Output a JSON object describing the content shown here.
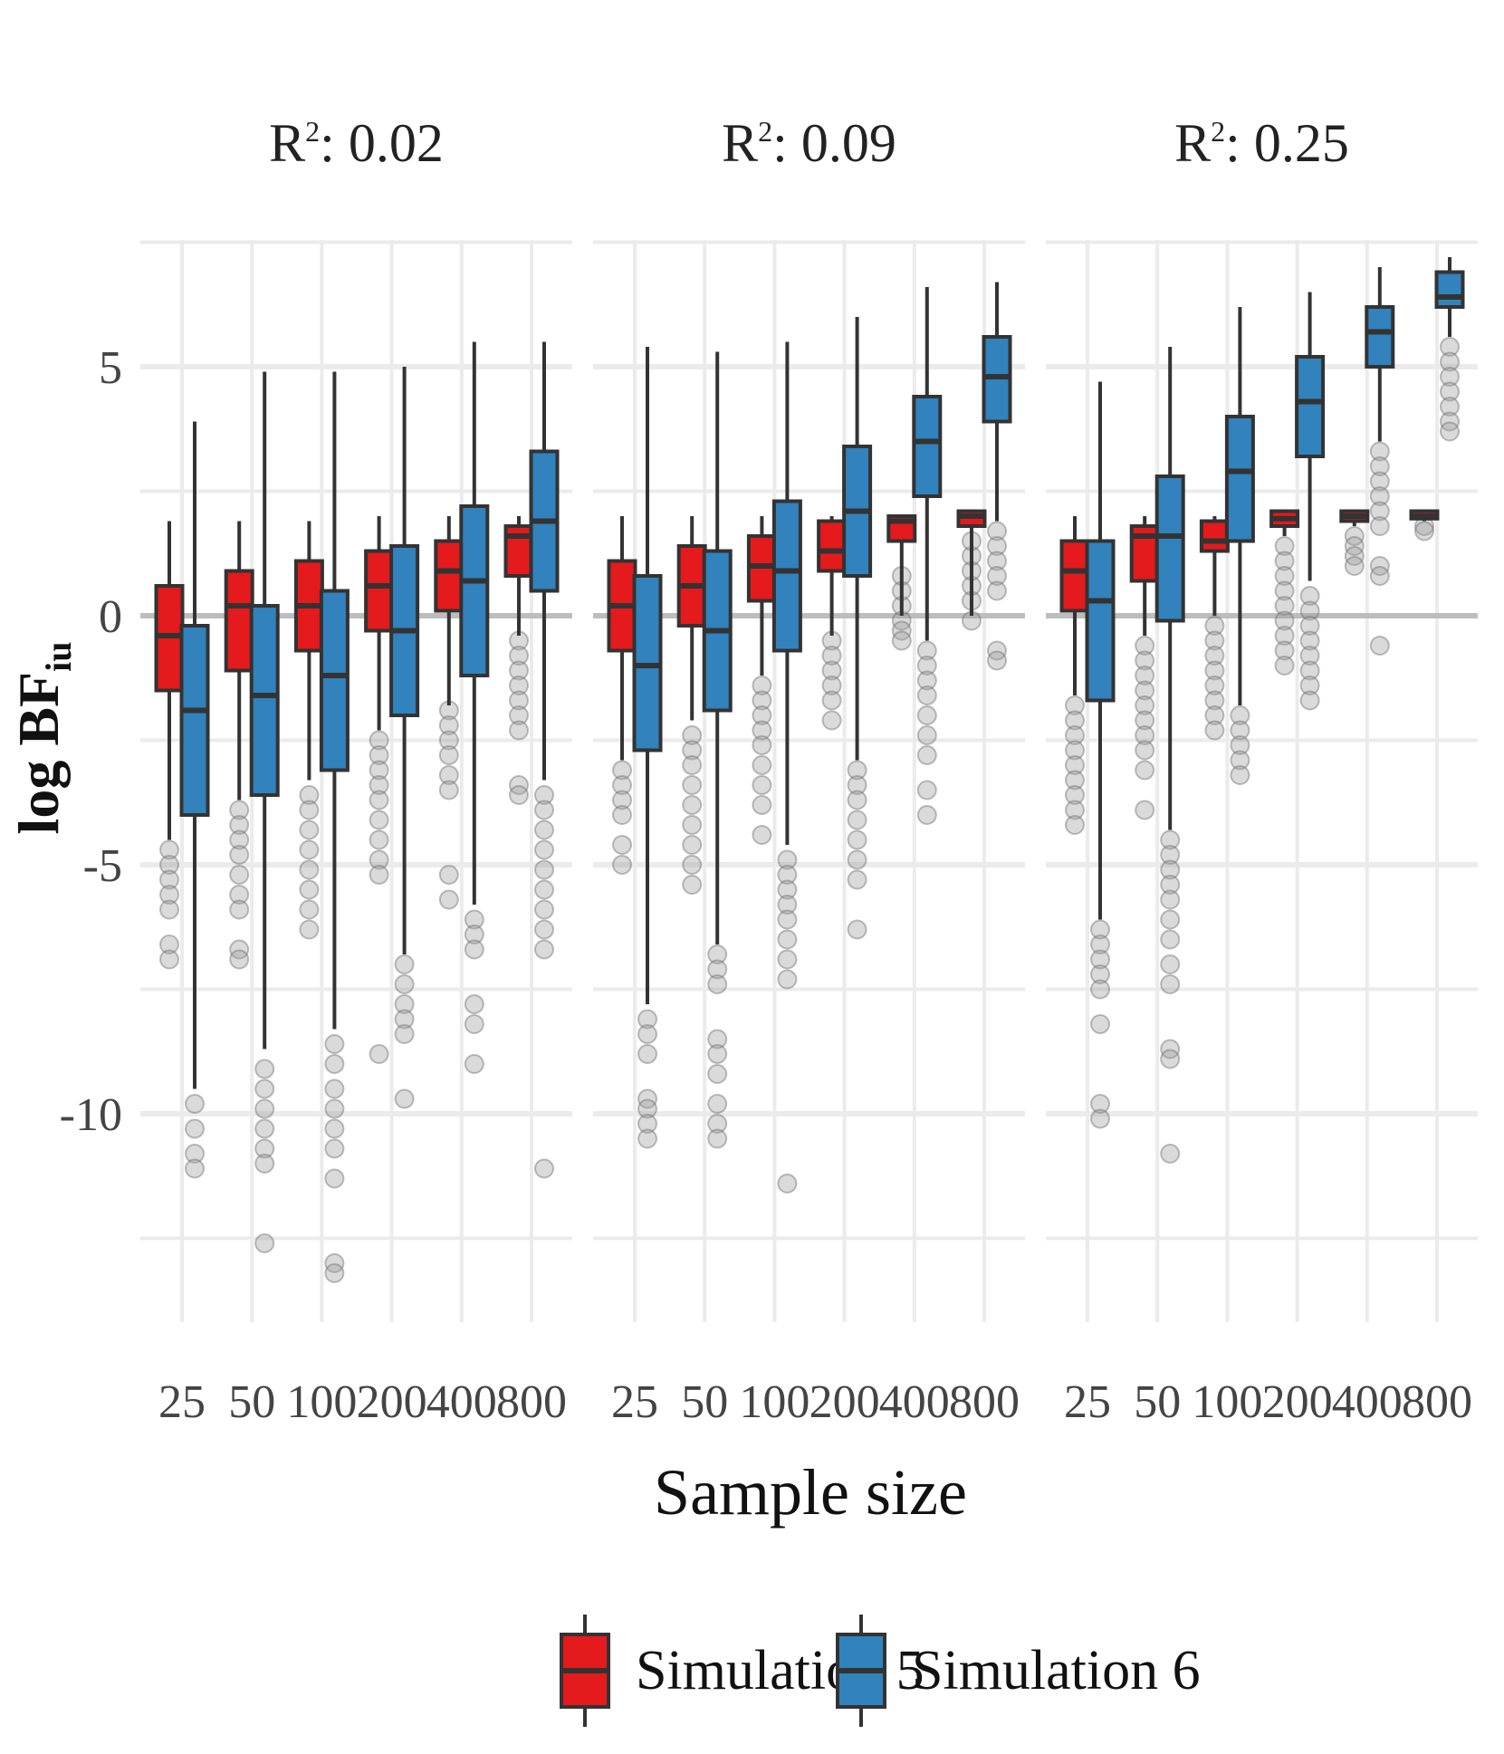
{
  "chart_data": {
    "type": "boxplot",
    "xlabel": "Sample size",
    "ylabel": "log BF",
    "ylabel_subscript": "iu",
    "ylim": [
      -14,
      8
    ],
    "yticks": [
      5,
      0,
      -5,
      -10
    ],
    "ytick_labels": [
      "5",
      "0",
      "-5",
      "-10"
    ],
    "reference_line": 0,
    "categories": [
      "25",
      "50",
      "100",
      "200",
      "400",
      "800"
    ],
    "legend": [
      {
        "name": "Simulation 5",
        "color": "#e41a1c"
      },
      {
        "name": "Simulation 6",
        "color": "#3182bd"
      }
    ],
    "facets": [
      {
        "title_prefix": "R",
        "title_sup": "2",
        "title_suffix": ": 0.02",
        "series": [
          {
            "name": "Simulation 5",
            "boxes": [
              {
                "q1": -1.5,
                "median": -0.4,
                "q3": 0.6,
                "wlo": -4.5,
                "whi": 1.9,
                "out": [
                  -4.7,
                  -5.0,
                  -5.3,
                  -5.6,
                  -5.9,
                  -6.6,
                  -6.9
                ]
              },
              {
                "q1": -1.1,
                "median": 0.2,
                "q3": 0.9,
                "wlo": -3.7,
                "whi": 1.9,
                "out": [
                  -3.9,
                  -4.2,
                  -4.5,
                  -4.8,
                  -5.2,
                  -5.6,
                  -5.9,
                  -6.7,
                  -6.9
                ]
              },
              {
                "q1": -0.7,
                "median": 0.2,
                "q3": 1.1,
                "wlo": -3.3,
                "whi": 1.9,
                "out": [
                  -3.6,
                  -3.9,
                  -4.3,
                  -4.7,
                  -5.1,
                  -5.5,
                  -5.9,
                  -6.3
                ]
              },
              {
                "q1": -0.3,
                "median": 0.6,
                "q3": 1.3,
                "wlo": -2.3,
                "whi": 2.0,
                "out": [
                  -2.5,
                  -2.8,
                  -3.1,
                  -3.4,
                  -3.7,
                  -4.1,
                  -4.5,
                  -4.9,
                  -5.2,
                  -8.8
                ]
              },
              {
                "q1": 0.1,
                "median": 0.9,
                "q3": 1.5,
                "wlo": -1.8,
                "whi": 2.0,
                "out": [
                  -1.9,
                  -2.2,
                  -2.5,
                  -2.8,
                  -3.2,
                  -3.5,
                  -5.2,
                  -5.7
                ]
              },
              {
                "q1": 0.8,
                "median": 1.6,
                "q3": 1.8,
                "wlo": -0.4,
                "whi": 2.0,
                "out": [
                  -0.5,
                  -0.8,
                  -1.1,
                  -1.4,
                  -1.7,
                  -2.0,
                  -2.3,
                  -3.4,
                  -3.6
                ]
              }
            ]
          },
          {
            "name": "Simulation 6",
            "boxes": [
              {
                "q1": -4.0,
                "median": -1.9,
                "q3": -0.2,
                "wlo": -9.5,
                "whi": 3.9,
                "out": [
                  -9.8,
                  -10.3,
                  -10.8,
                  -11.1
                ]
              },
              {
                "q1": -3.6,
                "median": -1.6,
                "q3": 0.2,
                "wlo": -8.7,
                "whi": 4.9,
                "out": [
                  -9.1,
                  -9.5,
                  -9.9,
                  -10.3,
                  -10.7,
                  -11.0,
                  -12.6
                ]
              },
              {
                "q1": -3.1,
                "median": -1.2,
                "q3": 0.5,
                "wlo": -8.3,
                "whi": 4.9,
                "out": [
                  -8.6,
                  -9.0,
                  -9.5,
                  -9.9,
                  -10.3,
                  -10.7,
                  -11.3,
                  -13.0,
                  -13.2
                ]
              },
              {
                "q1": -2.0,
                "median": -0.3,
                "q3": 1.4,
                "wlo": -6.8,
                "whi": 5.0,
                "out": [
                  -7.0,
                  -7.4,
                  -7.8,
                  -8.1,
                  -8.4,
                  -9.7
                ]
              },
              {
                "q1": -1.2,
                "median": 0.7,
                "q3": 2.2,
                "wlo": -5.8,
                "whi": 5.5,
                "out": [
                  -6.1,
                  -6.4,
                  -6.7,
                  -7.8,
                  -8.2,
                  -9.0
                ]
              },
              {
                "q1": 0.5,
                "median": 1.9,
                "q3": 3.3,
                "wlo": -3.3,
                "whi": 5.5,
                "out": [
                  -3.6,
                  -3.9,
                  -4.3,
                  -4.7,
                  -5.1,
                  -5.5,
                  -5.9,
                  -6.3,
                  -6.7,
                  -11.1
                ]
              }
            ]
          }
        ]
      },
      {
        "title_prefix": "R",
        "title_sup": "2",
        "title_suffix": ": 0.09",
        "series": [
          {
            "name": "Simulation 5",
            "boxes": [
              {
                "q1": -0.7,
                "median": 0.2,
                "q3": 1.1,
                "wlo": -2.9,
                "whi": 2.0,
                "out": [
                  -3.1,
                  -3.4,
                  -3.7,
                  -4.0,
                  -4.6,
                  -5.0
                ]
              },
              {
                "q1": -0.2,
                "median": 0.6,
                "q3": 1.4,
                "wlo": -2.1,
                "whi": 2.0,
                "out": [
                  -2.4,
                  -2.7,
                  -3.0,
                  -3.4,
                  -3.8,
                  -4.2,
                  -4.6,
                  -5.0,
                  -5.4
                ]
              },
              {
                "q1": 0.3,
                "median": 1.0,
                "q3": 1.6,
                "wlo": -1.2,
                "whi": 2.0,
                "out": [
                  -1.4,
                  -1.7,
                  -2.0,
                  -2.3,
                  -2.6,
                  -3.0,
                  -3.4,
                  -3.8,
                  -4.4
                ]
              },
              {
                "q1": 0.9,
                "median": 1.3,
                "q3": 1.9,
                "wlo": -0.4,
                "whi": 2.0,
                "out": [
                  -0.5,
                  -0.8,
                  -1.1,
                  -1.4,
                  -1.7,
                  -2.1
                ]
              },
              {
                "q1": 1.5,
                "median": 1.9,
                "q3": 2.0,
                "wlo": 0.0,
                "whi": 2.0,
                "out": [
                  -0.1,
                  -0.3,
                  -0.5,
                  0.2,
                  0.5,
                  0.8
                ]
              },
              {
                "q1": 1.8,
                "median": 2.0,
                "q3": 2.1,
                "wlo": 0.0,
                "whi": 2.1,
                "out": [
                  -0.1,
                  0.3,
                  0.6,
                  0.9,
                  1.2,
                  1.5
                ]
              }
            ]
          },
          {
            "name": "Simulation 6",
            "boxes": [
              {
                "q1": -2.7,
                "median": -1.0,
                "q3": 0.8,
                "wlo": -7.8,
                "whi": 5.4,
                "out": [
                  -8.1,
                  -8.4,
                  -8.8,
                  -9.7,
                  -9.9,
                  -10.2,
                  -10.5
                ]
              },
              {
                "q1": -1.9,
                "median": -0.3,
                "q3": 1.3,
                "wlo": -6.6,
                "whi": 5.3,
                "out": [
                  -6.8,
                  -7.1,
                  -7.4,
                  -8.5,
                  -8.8,
                  -9.2,
                  -9.8,
                  -10.2,
                  -10.5
                ]
              },
              {
                "q1": -0.7,
                "median": 0.9,
                "q3": 2.3,
                "wlo": -4.6,
                "whi": 5.5,
                "out": [
                  -4.9,
                  -5.2,
                  -5.5,
                  -5.8,
                  -6.1,
                  -6.5,
                  -6.9,
                  -7.3,
                  -11.4
                ]
              },
              {
                "q1": 0.8,
                "median": 2.1,
                "q3": 3.4,
                "wlo": -2.9,
                "whi": 6.0,
                "out": [
                  -3.1,
                  -3.4,
                  -3.7,
                  -4.1,
                  -4.5,
                  -4.9,
                  -5.3,
                  -6.3
                ]
              },
              {
                "q1": 2.4,
                "median": 3.5,
                "q3": 4.4,
                "wlo": -0.5,
                "whi": 6.6,
                "out": [
                  -0.7,
                  -1.0,
                  -1.3,
                  -1.6,
                  -2.0,
                  -2.4,
                  -2.8,
                  -3.5,
                  -4.0
                ]
              },
              {
                "q1": 3.9,
                "median": 4.8,
                "q3": 5.6,
                "wlo": 1.9,
                "whi": 6.7,
                "out": [
                  1.7,
                  1.4,
                  1.1,
                  0.8,
                  0.5,
                  -0.7,
                  -0.9
                ]
              }
            ]
          }
        ]
      },
      {
        "title_prefix": "R",
        "title_sup": "2",
        "title_suffix": ": 0.25",
        "series": [
          {
            "name": "Simulation 5",
            "boxes": [
              {
                "q1": 0.1,
                "median": 0.9,
                "q3": 1.5,
                "wlo": -1.6,
                "whi": 2.0,
                "out": [
                  -1.8,
                  -2.1,
                  -2.4,
                  -2.7,
                  -3.0,
                  -3.3,
                  -3.6,
                  -3.9,
                  -4.2
                ]
              },
              {
                "q1": 0.7,
                "median": 1.6,
                "q3": 1.8,
                "wlo": -0.4,
                "whi": 2.0,
                "out": [
                  -0.6,
                  -0.9,
                  -1.2,
                  -1.5,
                  -1.8,
                  -2.1,
                  -2.4,
                  -2.7,
                  -3.1,
                  -3.9
                ]
              },
              {
                "q1": 1.3,
                "median": 1.5,
                "q3": 1.9,
                "wlo": 0.0,
                "whi": 2.0,
                "out": [
                  -0.2,
                  -0.5,
                  -0.8,
                  -1.1,
                  -1.4,
                  -1.7,
                  -2.0,
                  -2.3
                ]
              },
              {
                "q1": 1.8,
                "median": 1.95,
                "q3": 2.1,
                "wlo": 1.6,
                "whi": 2.1,
                "out": [
                  1.4,
                  1.1,
                  0.8,
                  0.5,
                  0.2,
                  -0.1,
                  -0.4,
                  -0.7,
                  -1.0
                ]
              },
              {
                "q1": 1.9,
                "median": 2.0,
                "q3": 2.1,
                "wlo": 1.8,
                "whi": 2.1,
                "out": [
                  1.6,
                  1.4,
                  1.2,
                  1.0
                ]
              },
              {
                "q1": 1.95,
                "median": 2.0,
                "q3": 2.1,
                "wlo": 1.9,
                "whi": 2.1,
                "out": [
                  1.8,
                  1.7
                ]
              }
            ]
          },
          {
            "name": "Simulation 6",
            "boxes": [
              {
                "q1": -1.7,
                "median": 0.3,
                "q3": 1.5,
                "wlo": -6.1,
                "whi": 4.7,
                "out": [
                  -6.3,
                  -6.6,
                  -6.9,
                  -7.2,
                  -7.5,
                  -8.2,
                  -9.8,
                  -10.1
                ]
              },
              {
                "q1": -0.1,
                "median": 1.6,
                "q3": 2.8,
                "wlo": -4.3,
                "whi": 5.4,
                "out": [
                  -4.5,
                  -4.8,
                  -5.1,
                  -5.4,
                  -5.7,
                  -6.1,
                  -6.5,
                  -7.0,
                  -7.4,
                  -8.7,
                  -8.9,
                  -10.8
                ]
              },
              {
                "q1": 1.5,
                "median": 2.9,
                "q3": 4.0,
                "wlo": -1.8,
                "whi": 6.2,
                "out": [
                  -2.0,
                  -2.3,
                  -2.6,
                  -2.9,
                  -3.2
                ]
              },
              {
                "q1": 3.2,
                "median": 4.3,
                "q3": 5.2,
                "wlo": 0.7,
                "whi": 6.5,
                "out": [
                  0.4,
                  0.1,
                  -0.2,
                  -0.5,
                  -0.8,
                  -1.1,
                  -1.4,
                  -1.7
                ]
              },
              {
                "q1": 5.0,
                "median": 5.7,
                "q3": 6.2,
                "wlo": 3.5,
                "whi": 7.0,
                "out": [
                  3.3,
                  3.0,
                  2.7,
                  2.4,
                  2.1,
                  1.8,
                  1.0,
                  0.8,
                  -0.6
                ]
              },
              {
                "q1": 6.2,
                "median": 6.4,
                "q3": 6.9,
                "wlo": 5.6,
                "whi": 7.2,
                "out": [
                  5.4,
                  5.1,
                  4.8,
                  4.5,
                  4.2,
                  3.9,
                  3.7
                ]
              }
            ]
          }
        ]
      }
    ]
  }
}
